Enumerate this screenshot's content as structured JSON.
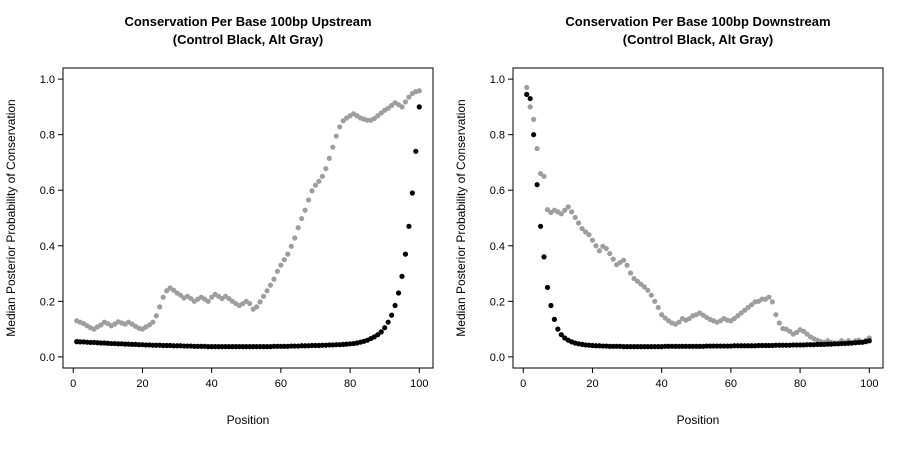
{
  "page": {
    "background": "#ffffff",
    "point_color_control": "#000000",
    "point_color_alt": "#9e9e9e"
  },
  "chart_data": [
    {
      "type": "scatter",
      "title_line1": "Conservation Per Base 100bp Upstream",
      "title_line2": "(Control Black, Alt Gray)",
      "xlabel": "Position",
      "ylabel": "Median Posterior Probability of Conservation",
      "xlim": [
        1,
        100
      ],
      "ylim": [
        0,
        1
      ],
      "x_ticks": [
        0,
        20,
        40,
        60,
        80,
        100
      ],
      "y_ticks": [
        "0.0",
        "0.2",
        "0.4",
        "0.6",
        "0.8",
        "1.0"
      ],
      "grid": false,
      "legend": "none (encoded in title: Control black, Alt gray)",
      "positions": [
        1,
        2,
        3,
        4,
        5,
        6,
        7,
        8,
        9,
        10,
        11,
        12,
        13,
        14,
        15,
        16,
        17,
        18,
        19,
        20,
        21,
        22,
        23,
        24,
        25,
        26,
        27,
        28,
        29,
        30,
        31,
        32,
        33,
        34,
        35,
        36,
        37,
        38,
        39,
        40,
        41,
        42,
        43,
        44,
        45,
        46,
        47,
        48,
        49,
        50,
        51,
        52,
        53,
        54,
        55,
        56,
        57,
        58,
        59,
        60,
        61,
        62,
        63,
        64,
        65,
        66,
        67,
        68,
        69,
        70,
        71,
        72,
        73,
        74,
        75,
        76,
        77,
        78,
        79,
        80,
        81,
        82,
        83,
        84,
        85,
        86,
        87,
        88,
        89,
        90,
        91,
        92,
        93,
        94,
        95,
        96,
        97,
        98,
        99,
        100
      ],
      "series": [
        {
          "name": "Control",
          "color": "#000000",
          "values": [
            0.055,
            0.054,
            0.054,
            0.053,
            0.052,
            0.052,
            0.051,
            0.05,
            0.05,
            0.049,
            0.048,
            0.048,
            0.047,
            0.047,
            0.046,
            0.046,
            0.045,
            0.045,
            0.044,
            0.044,
            0.043,
            0.043,
            0.042,
            0.042,
            0.042,
            0.041,
            0.041,
            0.041,
            0.04,
            0.04,
            0.04,
            0.039,
            0.039,
            0.039,
            0.038,
            0.038,
            0.038,
            0.038,
            0.037,
            0.037,
            0.037,
            0.037,
            0.037,
            0.037,
            0.037,
            0.037,
            0.037,
            0.037,
            0.037,
            0.037,
            0.037,
            0.037,
            0.037,
            0.037,
            0.037,
            0.037,
            0.037,
            0.038,
            0.038,
            0.038,
            0.038,
            0.038,
            0.039,
            0.039,
            0.039,
            0.04,
            0.04,
            0.04,
            0.041,
            0.041,
            0.041,
            0.042,
            0.042,
            0.043,
            0.043,
            0.044,
            0.044,
            0.045,
            0.046,
            0.047,
            0.048,
            0.05,
            0.053,
            0.056,
            0.06,
            0.066,
            0.072,
            0.08,
            0.09,
            0.105,
            0.125,
            0.15,
            0.185,
            0.23,
            0.29,
            0.37,
            0.47,
            0.59,
            0.74,
            0.9
          ]
        },
        {
          "name": "Alt",
          "color": "#9e9e9e",
          "values": [
            0.13,
            0.125,
            0.12,
            0.112,
            0.105,
            0.1,
            0.108,
            0.115,
            0.125,
            0.12,
            0.112,
            0.118,
            0.126,
            0.122,
            0.118,
            0.125,
            0.118,
            0.11,
            0.103,
            0.1,
            0.108,
            0.115,
            0.125,
            0.148,
            0.18,
            0.215,
            0.238,
            0.248,
            0.24,
            0.23,
            0.222,
            0.212,
            0.218,
            0.21,
            0.2,
            0.208,
            0.215,
            0.208,
            0.2,
            0.215,
            0.225,
            0.218,
            0.21,
            0.218,
            0.21,
            0.2,
            0.192,
            0.185,
            0.192,
            0.2,
            0.192,
            0.172,
            0.18,
            0.198,
            0.218,
            0.238,
            0.258,
            0.28,
            0.308,
            0.33,
            0.35,
            0.37,
            0.398,
            0.428,
            0.465,
            0.498,
            0.528,
            0.565,
            0.598,
            0.618,
            0.632,
            0.65,
            0.678,
            0.715,
            0.755,
            0.795,
            0.828,
            0.85,
            0.86,
            0.868,
            0.875,
            0.868,
            0.86,
            0.856,
            0.852,
            0.852,
            0.858,
            0.868,
            0.878,
            0.888,
            0.895,
            0.905,
            0.915,
            0.908,
            0.9,
            0.918,
            0.935,
            0.948,
            0.955,
            0.958
          ]
        }
      ]
    },
    {
      "type": "scatter",
      "title_line1": "Conservation Per Base 100bp Downstream",
      "title_line2": "(Control Black, Alt Gray)",
      "xlabel": "Position",
      "ylabel": "Median Posterior Probability of Conservation",
      "xlim": [
        1,
        100
      ],
      "ylim": [
        0,
        1
      ],
      "x_ticks": [
        0,
        20,
        40,
        60,
        80,
        100
      ],
      "y_ticks": [
        "0.0",
        "0.2",
        "0.4",
        "0.6",
        "0.8",
        "1.0"
      ],
      "grid": false,
      "legend": "none (encoded in title: Control black, Alt gray)",
      "positions": [
        1,
        2,
        3,
        4,
        5,
        6,
        7,
        8,
        9,
        10,
        11,
        12,
        13,
        14,
        15,
        16,
        17,
        18,
        19,
        20,
        21,
        22,
        23,
        24,
        25,
        26,
        27,
        28,
        29,
        30,
        31,
        32,
        33,
        34,
        35,
        36,
        37,
        38,
        39,
        40,
        41,
        42,
        43,
        44,
        45,
        46,
        47,
        48,
        49,
        50,
        51,
        52,
        53,
        54,
        55,
        56,
        57,
        58,
        59,
        60,
        61,
        62,
        63,
        64,
        65,
        66,
        67,
        68,
        69,
        70,
        71,
        72,
        73,
        74,
        75,
        76,
        77,
        78,
        79,
        80,
        81,
        82,
        83,
        84,
        85,
        86,
        87,
        88,
        89,
        90,
        91,
        92,
        93,
        94,
        95,
        96,
        97,
        98,
        99,
        100
      ],
      "series": [
        {
          "name": "Control",
          "color": "#000000",
          "values": [
            0.945,
            0.93,
            0.8,
            0.62,
            0.47,
            0.36,
            0.25,
            0.185,
            0.135,
            0.1,
            0.08,
            0.068,
            0.06,
            0.054,
            0.05,
            0.047,
            0.045,
            0.043,
            0.042,
            0.041,
            0.04,
            0.04,
            0.039,
            0.039,
            0.038,
            0.038,
            0.038,
            0.038,
            0.037,
            0.037,
            0.037,
            0.037,
            0.037,
            0.037,
            0.037,
            0.037,
            0.037,
            0.037,
            0.037,
            0.037,
            0.038,
            0.038,
            0.038,
            0.038,
            0.038,
            0.038,
            0.038,
            0.038,
            0.038,
            0.038,
            0.038,
            0.038,
            0.039,
            0.039,
            0.039,
            0.039,
            0.039,
            0.039,
            0.039,
            0.039,
            0.04,
            0.04,
            0.04,
            0.04,
            0.04,
            0.04,
            0.04,
            0.041,
            0.041,
            0.041,
            0.041,
            0.041,
            0.042,
            0.042,
            0.042,
            0.042,
            0.042,
            0.043,
            0.043,
            0.043,
            0.043,
            0.044,
            0.044,
            0.044,
            0.045,
            0.045,
            0.045,
            0.046,
            0.046,
            0.047,
            0.047,
            0.048,
            0.048,
            0.049,
            0.05,
            0.051,
            0.052,
            0.053,
            0.055,
            0.058
          ]
        },
        {
          "name": "Alt",
          "color": "#9e9e9e",
          "values": [
            0.97,
            0.9,
            0.855,
            0.75,
            0.66,
            0.65,
            0.53,
            0.52,
            0.528,
            0.522,
            0.515,
            0.528,
            0.54,
            0.522,
            0.502,
            0.482,
            0.462,
            0.45,
            0.44,
            0.42,
            0.4,
            0.382,
            0.398,
            0.39,
            0.372,
            0.352,
            0.332,
            0.34,
            0.348,
            0.33,
            0.302,
            0.282,
            0.272,
            0.262,
            0.252,
            0.24,
            0.222,
            0.2,
            0.178,
            0.152,
            0.14,
            0.13,
            0.122,
            0.118,
            0.125,
            0.138,
            0.132,
            0.138,
            0.148,
            0.152,
            0.158,
            0.15,
            0.142,
            0.135,
            0.13,
            0.125,
            0.13,
            0.138,
            0.132,
            0.13,
            0.138,
            0.148,
            0.158,
            0.168,
            0.178,
            0.188,
            0.198,
            0.2,
            0.208,
            0.208,
            0.215,
            0.198,
            0.152,
            0.122,
            0.102,
            0.1,
            0.092,
            0.082,
            0.088,
            0.098,
            0.092,
            0.082,
            0.072,
            0.065,
            0.06,
            0.055,
            0.052,
            0.058,
            0.052,
            0.05,
            0.05,
            0.058,
            0.052,
            0.058,
            0.05,
            0.058,
            0.06,
            0.052,
            0.06,
            0.068
          ]
        }
      ]
    }
  ]
}
